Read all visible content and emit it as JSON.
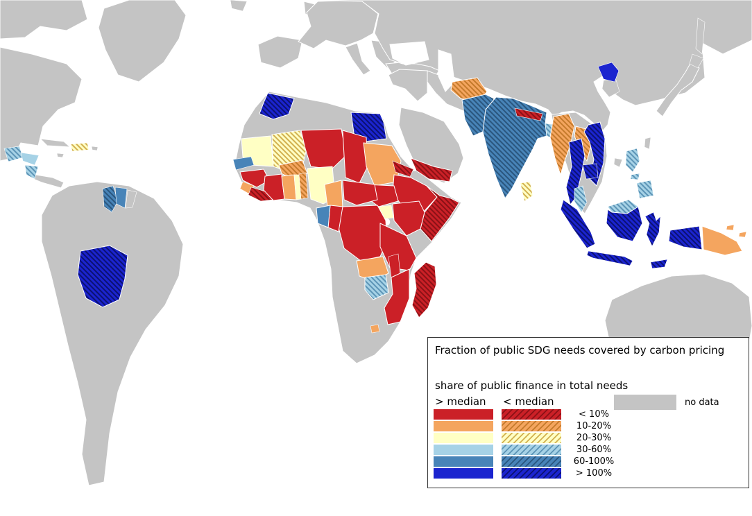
{
  "legend": {
    "title": "Fraction of public SDG needs covered by carbon pricing",
    "subtitle": "share of public finance in total needs",
    "col_solid": "> median",
    "col_hatched": "< median",
    "no_data_label": "no data",
    "categories": [
      {
        "key": "lt10",
        "label": "< 10%",
        "color": "#CB2027",
        "stripe": "#8B1116"
      },
      {
        "key": "r10_20",
        "label": "10-20%",
        "color": "#F4A55F",
        "stripe": "#C47A2B"
      },
      {
        "key": "r20_30",
        "label": "20-30%",
        "color": "#FFFFC4",
        "stripe": "#D2B050"
      },
      {
        "key": "r30_60",
        "label": "30-60%",
        "color": "#A6D2E6",
        "stripe": "#5C94B6"
      },
      {
        "key": "r60_100",
        "label": "60-100%",
        "color": "#4884B8",
        "stripe": "#2A567E"
      },
      {
        "key": "gt100",
        "label": "> 100%",
        "color": "#1B24CF",
        "stripe": "#0B1173"
      }
    ]
  },
  "map": {
    "ocean_color": "#FFFFFF",
    "land_color": "#C4C4C4",
    "border_color": "#FFFFFF",
    "countries": {
      "morocco": {
        "label": "Morocco",
        "cat": "gt100",
        "hatched": true
      },
      "egypt": {
        "label": "Egypt",
        "cat": "gt100",
        "hatched": true
      },
      "mauritania": {
        "label": "Mauritania",
        "cat": "r20_30",
        "hatched": false
      },
      "mali": {
        "label": "Mali",
        "cat": "r20_30",
        "hatched": true
      },
      "senegal": {
        "label": "Senegal",
        "cat": "r60_100",
        "hatched": false
      },
      "guinea": {
        "label": "Guinea",
        "cat": "lt10",
        "hatched": false
      },
      "sierra_leone": {
        "label": "Sierra Leone",
        "cat": "r10_20",
        "hatched": false
      },
      "liberia": {
        "label": "Liberia",
        "cat": "lt10",
        "hatched": true
      },
      "cote_divoire": {
        "label": "Côte d'Ivoire",
        "cat": "lt10",
        "hatched": false
      },
      "burkina_faso": {
        "label": "Burkina Faso",
        "cat": "r10_20",
        "hatched": true
      },
      "ghana": {
        "label": "Ghana",
        "cat": "r10_20",
        "hatched": false
      },
      "togo": {
        "label": "Togo",
        "cat": "r20_30",
        "hatched": false
      },
      "benin": {
        "label": "Benin",
        "cat": "r10_20",
        "hatched": true
      },
      "niger": {
        "label": "Niger",
        "cat": "lt10",
        "hatched": false
      },
      "nigeria": {
        "label": "Nigeria",
        "cat": "r20_30",
        "hatched": false
      },
      "chad": {
        "label": "Chad",
        "cat": "lt10",
        "hatched": false
      },
      "sudan": {
        "label": "Sudan",
        "cat": "r10_20",
        "hatched": false
      },
      "eritrea": {
        "label": "Eritrea",
        "cat": "lt10",
        "hatched": true
      },
      "ethiopia": {
        "label": "Ethiopia",
        "cat": "lt10",
        "hatched": false
      },
      "somalia": {
        "label": "Somalia",
        "cat": "lt10",
        "hatched": true
      },
      "south_sudan": {
        "label": "South Sudan",
        "cat": "lt10",
        "hatched": false
      },
      "central_african_republic": {
        "label": "Central African Republic",
        "cat": "lt10",
        "hatched": false
      },
      "cameroon": {
        "label": "Cameroon",
        "cat": "r10_20",
        "hatched": false
      },
      "gabon": {
        "label": "Gabon",
        "cat": "r60_100",
        "hatched": false
      },
      "congo": {
        "label": "Congo",
        "cat": "lt10",
        "hatched": false
      },
      "drc": {
        "label": "DR Congo",
        "cat": "lt10",
        "hatched": false
      },
      "uganda": {
        "label": "Uganda",
        "cat": "r20_30",
        "hatched": false
      },
      "kenya": {
        "label": "Kenya",
        "cat": "lt10",
        "hatched": false
      },
      "rwanda": {
        "label": "Rwanda",
        "cat": "r60_100",
        "hatched": false
      },
      "burundi": {
        "label": "Burundi",
        "cat": "lt10",
        "hatched": false
      },
      "tanzania": {
        "label": "Tanzania",
        "cat": "lt10",
        "hatched": false
      },
      "zambia": {
        "label": "Zambia",
        "cat": "r10_20",
        "hatched": false
      },
      "malawi": {
        "label": "Malawi",
        "cat": "lt10",
        "hatched": false
      },
      "mozambique": {
        "label": "Mozambique",
        "cat": "lt10",
        "hatched": false
      },
      "zimbabwe": {
        "label": "Zimbabwe",
        "cat": "r30_60",
        "hatched": true
      },
      "lesotho": {
        "label": "Lesotho",
        "cat": "r10_20",
        "hatched": false
      },
      "madagascar": {
        "label": "Madagascar",
        "cat": "lt10",
        "hatched": true
      },
      "yemen": {
        "label": "Yemen",
        "cat": "lt10",
        "hatched": true
      },
      "guatemala": {
        "label": "Guatemala",
        "cat": "r30_60",
        "hatched": true
      },
      "honduras": {
        "label": "Honduras",
        "cat": "r30_60",
        "hatched": false
      },
      "nicaragua": {
        "label": "Nicaragua",
        "cat": "r30_60",
        "hatched": true
      },
      "hispaniola": {
        "label": "Haiti / Dominican Republic",
        "cat": "r20_30",
        "hatched": true
      },
      "guyana": {
        "label": "Guyana",
        "cat": "r60_100",
        "hatched": true
      },
      "suriname": {
        "label": "Suriname",
        "cat": "r60_100",
        "hatched": false
      },
      "bolivia": {
        "label": "Bolivia",
        "cat": "gt100",
        "hatched": true
      },
      "afghanistan": {
        "label": "Afghanistan",
        "cat": "r10_20",
        "hatched": true
      },
      "pakistan": {
        "label": "Pakistan",
        "cat": "r60_100",
        "hatched": true
      },
      "india": {
        "label": "India",
        "cat": "r60_100",
        "hatched": true
      },
      "nepal": {
        "label": "Nepal",
        "cat": "lt10",
        "hatched": true
      },
      "bangladesh": {
        "label": "Bangladesh",
        "cat": "r30_60",
        "hatched": true
      },
      "sri_lanka": {
        "label": "Sri Lanka",
        "cat": "r20_30",
        "hatched": true
      },
      "myanmar": {
        "label": "Myanmar",
        "cat": "r10_20",
        "hatched": true
      },
      "laos": {
        "label": "Laos",
        "cat": "r10_20",
        "hatched": true
      },
      "thailand": {
        "label": "Thailand",
        "cat": "gt100",
        "hatched": true
      },
      "vietnam": {
        "label": "Vietnam",
        "cat": "gt100",
        "hatched": true
      },
      "cambodia": {
        "label": "Cambodia",
        "cat": "gt100",
        "hatched": true
      },
      "malaysia": {
        "label": "Malaysia",
        "cat": "r30_60",
        "hatched": true
      },
      "indonesia": {
        "label": "Indonesia",
        "cat": "gt100",
        "hatched": true
      },
      "philippines": {
        "label": "Philippines",
        "cat": "r30_60",
        "hatched": true
      },
      "papua_new_guinea": {
        "label": "Papua New Guinea",
        "cat": "r10_20",
        "hatched": false
      },
      "north_korea": {
        "label": "North Korea",
        "cat": "gt100",
        "hatched": false
      }
    }
  }
}
